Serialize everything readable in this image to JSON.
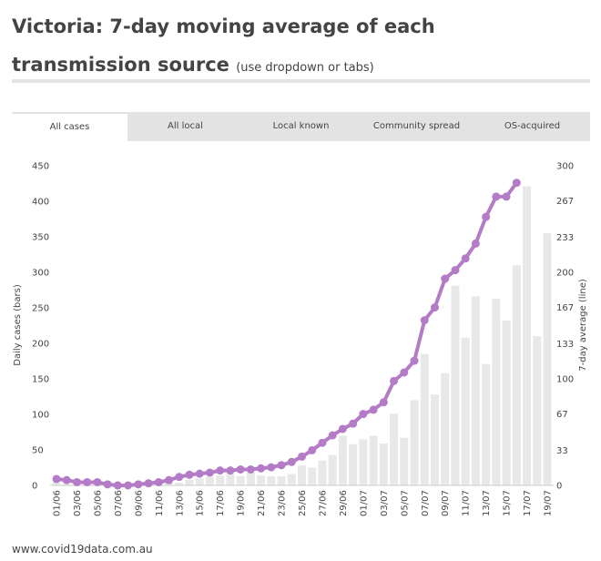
{
  "chart_data": {
    "type": "bar-line",
    "title": "Victoria: 7-day moving average of each transmission source",
    "subtitle": "(use dropdown or tabs)",
    "y_label": "Daily cases (bars)",
    "y2_label": "7-day average (line)",
    "categories": [
      "01/06",
      null,
      "03/06",
      null,
      "05/06",
      null,
      "07/06",
      null,
      "09/06",
      null,
      "11/06",
      null,
      "13/06",
      null,
      "15/06",
      null,
      "17/06",
      null,
      "19/06",
      null,
      "21/06",
      null,
      "23/06",
      null,
      "25/06",
      null,
      "27/06",
      null,
      "29/06",
      null,
      "01/07",
      null,
      "03/07",
      null,
      "05/07",
      null,
      "07/07",
      null,
      "09/07",
      null,
      "11/07",
      null,
      "13/07",
      null,
      "15/07",
      null,
      "17/07",
      null,
      "19/07"
    ],
    "series": [
      {
        "name": "Daily cases",
        "color": "#e8e8e8",
        "values": [
          4,
          2,
          1,
          3,
          2,
          1,
          0,
          1,
          1,
          2,
          3,
          5,
          4,
          8,
          10,
          12,
          14,
          17,
          13,
          18,
          14,
          13,
          13,
          16,
          28,
          25,
          35,
          43,
          70,
          58,
          65,
          70,
          59,
          101,
          67,
          120,
          185,
          128,
          158,
          281,
          208,
          266,
          171,
          263,
          232,
          310,
          421,
          210,
          355
        ]
      },
      {
        "name": "7-day average",
        "color": "#b47cc7",
        "axis": "y2",
        "values": [
          6,
          5,
          3,
          3,
          3,
          1,
          0,
          0,
          1,
          2,
          3,
          5,
          8,
          10,
          11,
          12,
          14,
          14,
          15,
          15,
          16,
          17,
          19,
          22,
          27,
          33,
          40,
          47,
          53,
          58,
          67,
          71,
          78,
          98,
          106,
          117,
          155,
          167,
          194,
          202,
          213,
          227,
          252,
          271,
          271,
          284,
          null,
          null,
          null
        ]
      }
    ],
    "ylim": [
      0,
      450
    ],
    "yticks": [
      0,
      50,
      100,
      150,
      200,
      250,
      300,
      350,
      400,
      450
    ],
    "y2lim": [
      0,
      300
    ],
    "y2ticks": [
      0,
      33,
      67,
      100,
      133,
      167,
      200,
      233,
      267,
      300
    ]
  },
  "tabs": [
    "All cases",
    "All local",
    "Local known",
    "Community spread",
    "OS-acquired"
  ],
  "footer": "www.covid19data.com.au"
}
